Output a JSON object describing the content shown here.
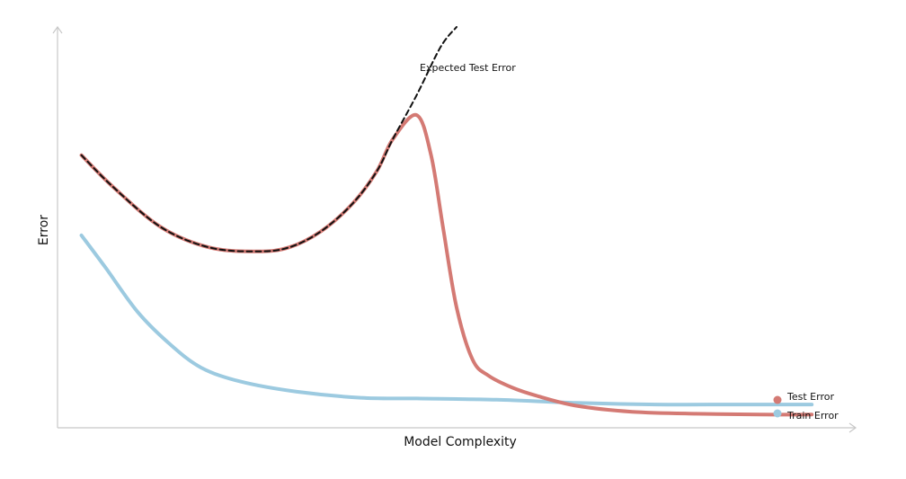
{
  "chart_data": {
    "type": "line",
    "xlabel": "Model Complexity",
    "ylabel": "Error",
    "xlim": [
      0,
      1
    ],
    "ylim": [
      0,
      1
    ],
    "grid": false,
    "legend": "right",
    "series": [
      {
        "name": "Test Error",
        "color": "#d47a74",
        "style": "solid",
        "x": [
          0.03,
          0.07,
          0.13,
          0.19,
          0.25,
          0.29,
          0.33,
          0.37,
          0.4,
          0.42,
          0.45,
          0.468,
          0.483,
          0.5,
          0.52,
          0.54,
          0.57,
          0.6,
          0.65,
          0.72,
          0.8,
          0.88,
          0.945
        ],
        "y": [
          0.68,
          0.6,
          0.5,
          0.45,
          0.44,
          0.45,
          0.49,
          0.56,
          0.64,
          0.72,
          0.78,
          0.68,
          0.5,
          0.3,
          0.17,
          0.13,
          0.1,
          0.08,
          0.055,
          0.04,
          0.035,
          0.033,
          0.033
        ]
      },
      {
        "name": "Train Error",
        "color": "#9ccae0",
        "style": "solid",
        "x": [
          0.03,
          0.06,
          0.1,
          0.14,
          0.18,
          0.23,
          0.3,
          0.38,
          0.45,
          0.55,
          0.65,
          0.75,
          0.85,
          0.945
        ],
        "y": [
          0.48,
          0.4,
          0.29,
          0.21,
          0.15,
          0.115,
          0.09,
          0.075,
          0.073,
          0.07,
          0.062,
          0.058,
          0.058,
          0.058
        ]
      },
      {
        "name": "Expected Test Error",
        "color": "#111111",
        "style": "dashed",
        "x": [
          0.03,
          0.07,
          0.13,
          0.19,
          0.25,
          0.29,
          0.33,
          0.37,
          0.4,
          0.42,
          0.45,
          0.48,
          0.5
        ],
        "y": [
          0.68,
          0.6,
          0.5,
          0.45,
          0.44,
          0.45,
          0.49,
          0.56,
          0.64,
          0.72,
          0.83,
          0.95,
          1.0
        ]
      }
    ],
    "annotations": [
      {
        "text": "Expected Test Error",
        "x": 0.505,
        "y": 0.93
      }
    ]
  }
}
